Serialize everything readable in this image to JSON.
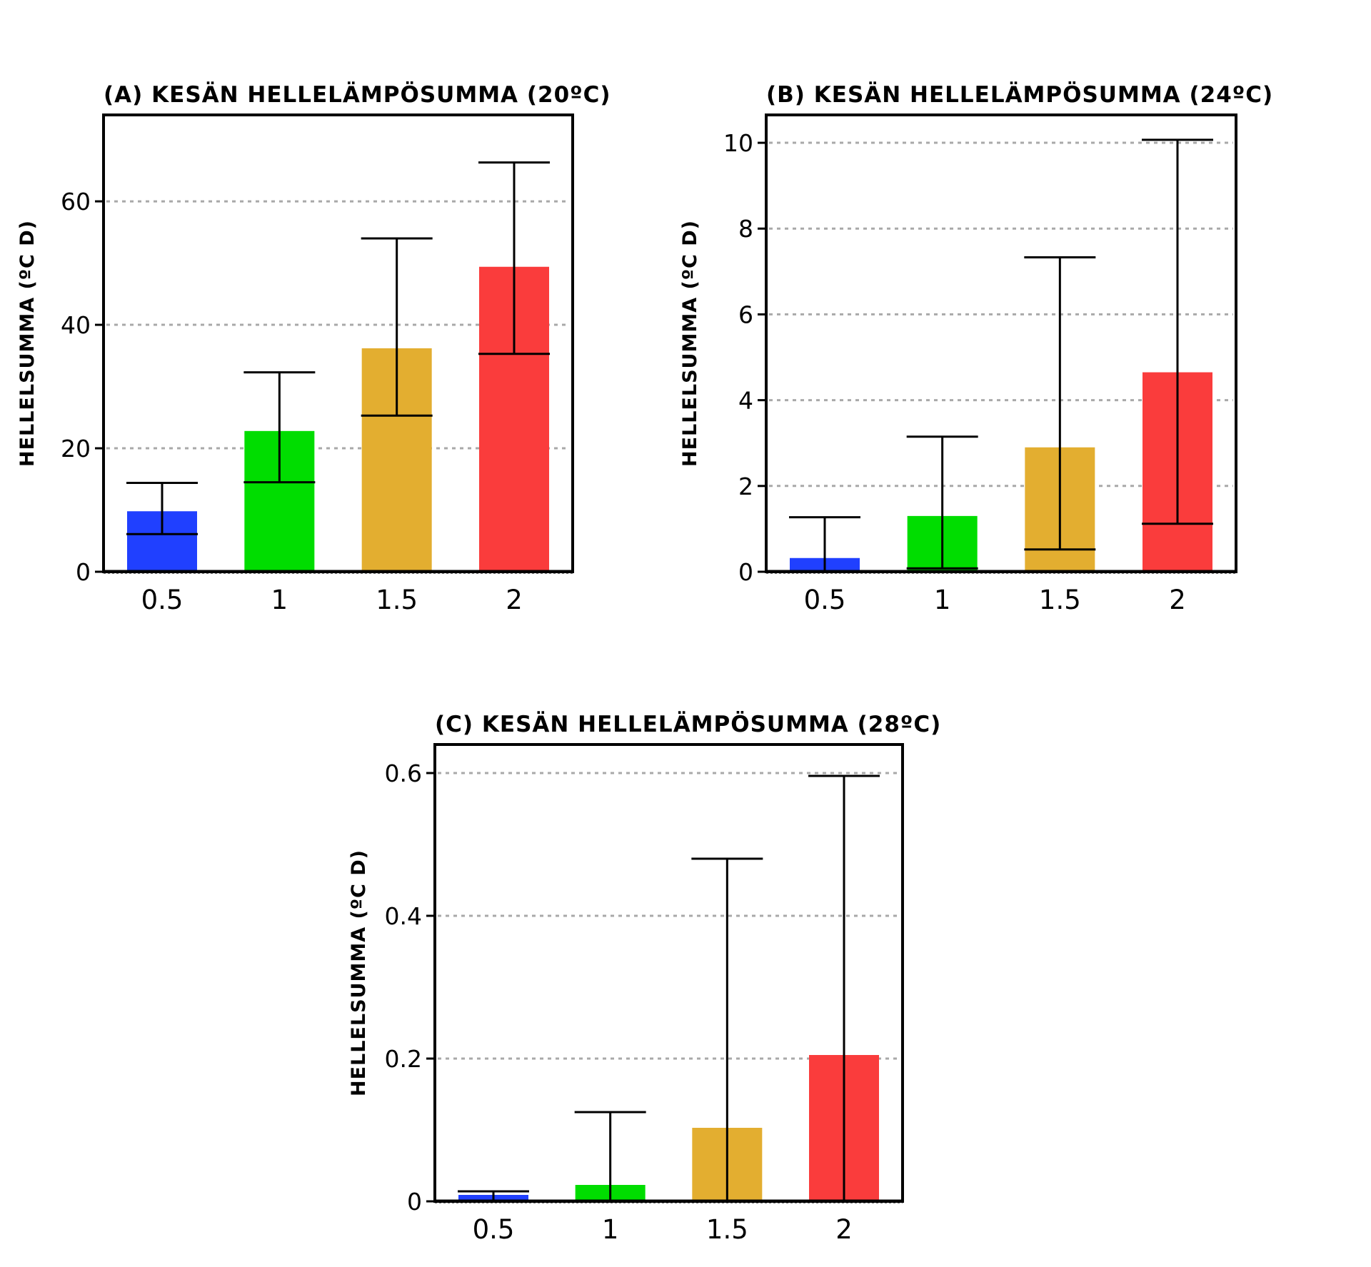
{
  "chart_data": [
    {
      "type": "bar",
      "title": "(A) KESÄN HELLELÄMPÖSUMMA (20ºC)",
      "ylabel": "HELLELSUMMA (ºC D)",
      "xlabel": "",
      "categories": [
        "0.5",
        "1",
        "1.5",
        "2"
      ],
      "values": [
        9.8,
        22.8,
        36.2,
        49.4
      ],
      "error_low": [
        6.1,
        14.5,
        25.3,
        35.3
      ],
      "error_high": [
        14.4,
        32.3,
        54.0,
        66.3
      ],
      "ylim": [
        0,
        74
      ],
      "yticks": [
        0,
        20,
        40,
        60
      ],
      "grid": true,
      "colors": [
        "#2040ff",
        "#00dd00",
        "#e3ae30",
        "#fa3c3c"
      ]
    },
    {
      "type": "bar",
      "title": "(B) KESÄN HELLELÄMPÖSUMMA (24ºC)",
      "ylabel": "HELLELSUMMA (ºC D)",
      "xlabel": "",
      "categories": [
        "0.5",
        "1",
        "1.5",
        "2"
      ],
      "values": [
        0.32,
        1.3,
        2.9,
        4.65
      ],
      "error_low": [
        0.0,
        0.08,
        0.52,
        1.12
      ],
      "error_high": [
        1.27,
        3.15,
        7.33,
        10.07
      ],
      "ylim": [
        0,
        10.65
      ],
      "yticks": [
        0,
        2,
        4,
        6,
        8,
        10
      ],
      "grid": true,
      "colors": [
        "#2040ff",
        "#00dd00",
        "#e3ae30",
        "#fa3c3c"
      ]
    },
    {
      "type": "bar",
      "title": "(C) KESÄN HELLELÄMPÖSUMMA (28ºC)",
      "ylabel": "HELLELSUMMA (ºC D)",
      "xlabel": "",
      "categories": [
        "0.5",
        "1",
        "1.5",
        "2"
      ],
      "values": [
        0.009,
        0.023,
        0.103,
        0.205
      ],
      "error_low": [
        0.0,
        0.0,
        0.0,
        0.0
      ],
      "error_high": [
        0.014,
        0.125,
        0.48,
        0.596
      ],
      "ylim": [
        0,
        0.64
      ],
      "yticks": [
        "0",
        "0.2",
        "0.4",
        "0.6"
      ],
      "grid": true,
      "colors": [
        "#2040ff",
        "#00dd00",
        "#e3ae30",
        "#fa3c3c"
      ]
    }
  ]
}
